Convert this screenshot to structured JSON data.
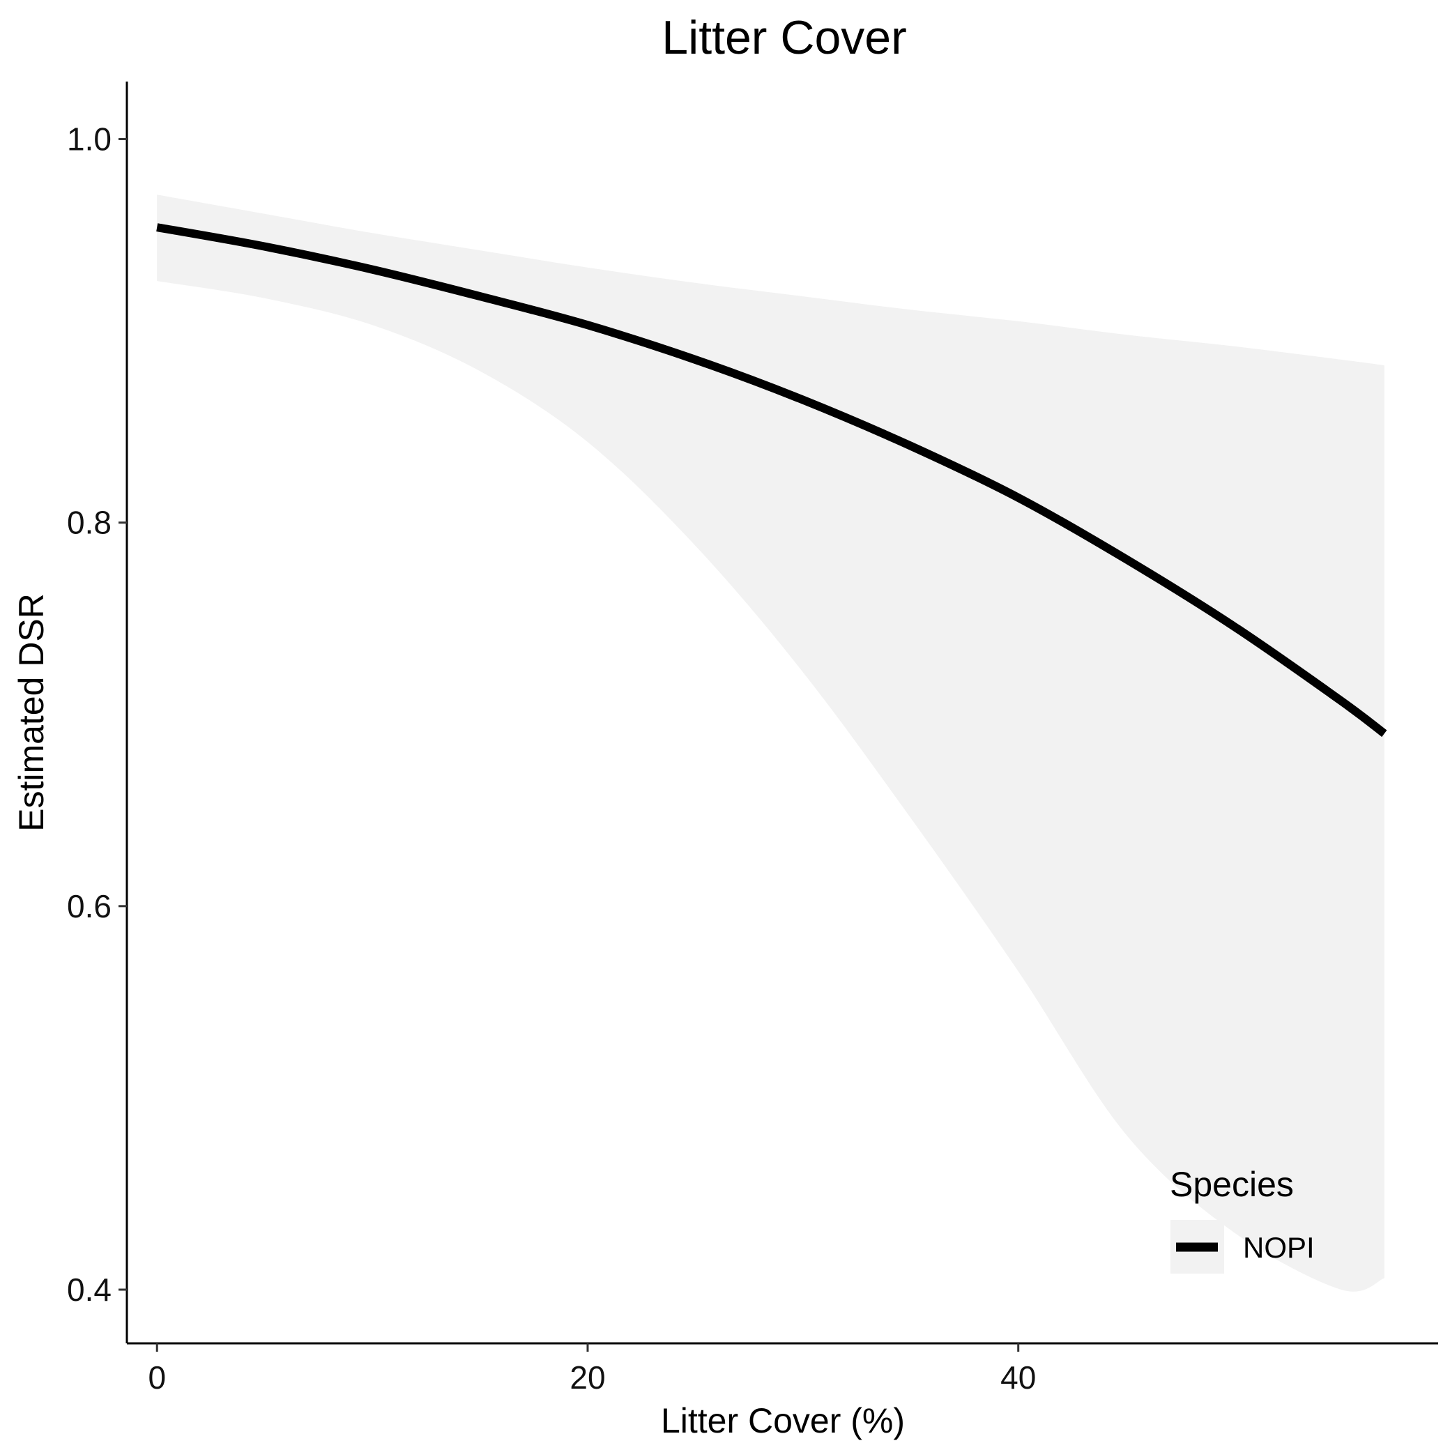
{
  "chart_data": {
    "type": "line",
    "title": "Litter Cover",
    "xlabel": "Litter Cover (%)",
    "ylabel": "Estimated DSR",
    "xlim": [
      -1.4,
      59.5
    ],
    "ylim": [
      0.372,
      1.03
    ],
    "x_ticks": [
      0,
      20,
      40
    ],
    "y_ticks": [
      0.4,
      0.6,
      0.8,
      1.0
    ],
    "x_tick_labels": [
      "0",
      "20",
      "40"
    ],
    "y_tick_labels": [
      "0.4",
      "0.6",
      "0.8",
      "1.0"
    ],
    "grid": false,
    "legend": {
      "title": "Species",
      "position": "bottom-right",
      "entries": [
        "NOPI"
      ]
    },
    "series": [
      {
        "name": "NOPI",
        "color": "#000000",
        "ribbon_color": "#f2f2f2",
        "x": [
          0,
          5,
          10,
          15,
          20,
          25,
          30,
          35,
          40,
          45,
          50,
          55,
          57
        ],
        "y": [
          0.954,
          0.944,
          0.932,
          0.918,
          0.903,
          0.885,
          0.864,
          0.84,
          0.813,
          0.781,
          0.746,
          0.707,
          0.69
        ],
        "lower": [
          0.926,
          0.917,
          0.903,
          0.879,
          0.842,
          0.788,
          0.722,
          0.646,
          0.566,
          0.481,
          0.43,
          0.4,
          0.406
        ],
        "upper": [
          0.971,
          0.961,
          0.951,
          0.942,
          0.933,
          0.925,
          0.918,
          0.911,
          0.905,
          0.898,
          0.892,
          0.885,
          0.882
        ]
      }
    ]
  }
}
